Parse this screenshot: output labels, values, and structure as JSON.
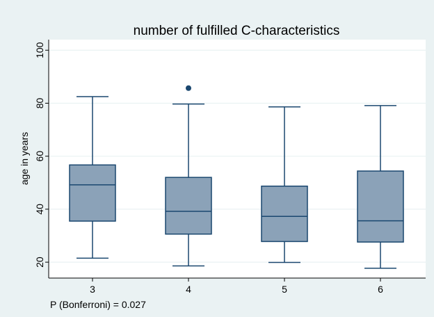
{
  "chart_data": {
    "type": "box",
    "title": "number of fulfilled C-characteristics",
    "xlabel": "",
    "ylabel": "age in years",
    "categories": [
      "3",
      "4",
      "5",
      "6"
    ],
    "ylim": [
      14,
      104
    ],
    "yticks": [
      20,
      40,
      60,
      80,
      100
    ],
    "grid": true,
    "boxes": [
      {
        "category": "3",
        "whisker_low": 21.5,
        "q1": 35.5,
        "median": 49.2,
        "q3": 56.7,
        "whisker_high": 82.5,
        "outliers": []
      },
      {
        "category": "4",
        "whisker_low": 18.6,
        "q1": 30.6,
        "median": 39.2,
        "q3": 52.0,
        "whisker_high": 79.7,
        "outliers": [
          85.7
        ]
      },
      {
        "category": "5",
        "whisker_low": 19.9,
        "q1": 27.8,
        "median": 37.3,
        "q3": 48.7,
        "whisker_high": 78.6,
        "outliers": []
      },
      {
        "category": "6",
        "whisker_low": 17.7,
        "q1": 27.6,
        "median": 35.6,
        "q3": 54.4,
        "whisker_high": 79.1,
        "outliers": []
      }
    ],
    "annotation": "P (Bonferroni) = 0.027",
    "colors": {
      "background": "#eaf2f3",
      "plot_area": "#ffffff",
      "box_fill": "#8ba2b8",
      "box_stroke": "#1a476f",
      "outlier": "#1a476f",
      "grid": "#eaf2f3",
      "text": "#000000"
    }
  }
}
